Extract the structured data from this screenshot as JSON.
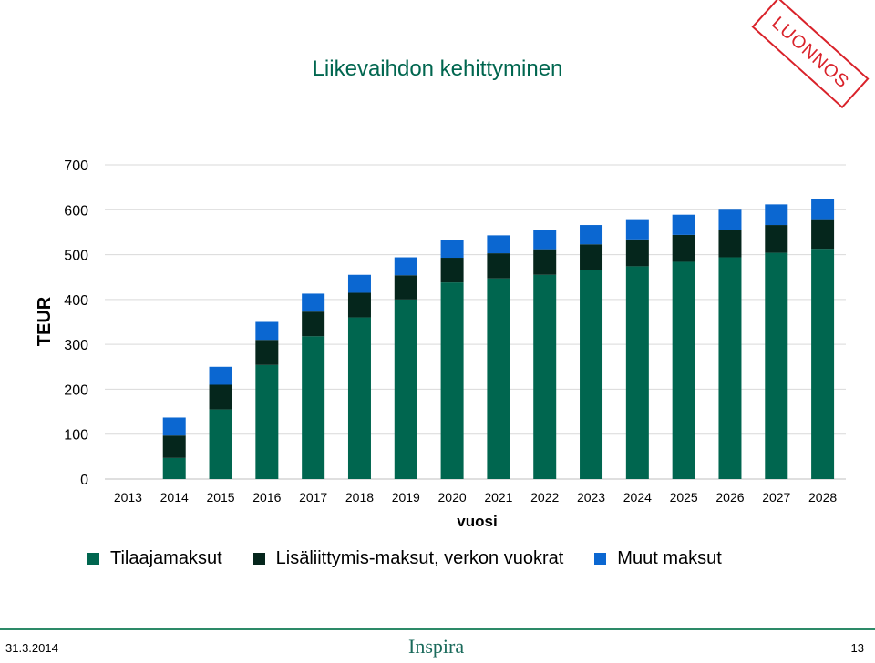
{
  "header": {
    "title": "Liikevaihdon kehittyminen"
  },
  "stamp": {
    "text": "LUONNOS",
    "color": "#d9222a"
  },
  "chart_data": {
    "type": "bar",
    "stacked": true,
    "categories": [
      "2013",
      "2014",
      "2015",
      "2016",
      "2017",
      "2018",
      "2019",
      "2020",
      "2021",
      "2022",
      "2023",
      "2024",
      "2025",
      "2026",
      "2027",
      "2028"
    ],
    "series": [
      {
        "name": "Tilaajamaksut",
        "color": "#00664f",
        "values": [
          0,
          47,
          155,
          254,
          318,
          360,
          400,
          438,
          447,
          455,
          465,
          474,
          484,
          494,
          504,
          513
        ]
      },
      {
        "name": "Lisäliittymis-maksut, verkon vuokrat",
        "color": "#05261c",
        "values": [
          0,
          50,
          55,
          56,
          55,
          55,
          54,
          55,
          56,
          57,
          58,
          60,
          60,
          61,
          62,
          64
        ]
      },
      {
        "name": "Muut maksut",
        "color": "#0b67d1",
        "values": [
          0,
          40,
          40,
          40,
          40,
          40,
          40,
          40,
          40,
          42,
          43,
          43,
          45,
          45,
          46,
          47
        ]
      }
    ],
    "ylabel": "TEUR",
    "xlabel": "vuosi",
    "ylim": [
      0,
      700
    ],
    "yticks": [
      0,
      100,
      200,
      300,
      400,
      500,
      600,
      700
    ],
    "grid": true,
    "legend_position": "bottom"
  },
  "footer": {
    "date": "31.3.2014",
    "logo": "Inspira",
    "page": "13"
  }
}
